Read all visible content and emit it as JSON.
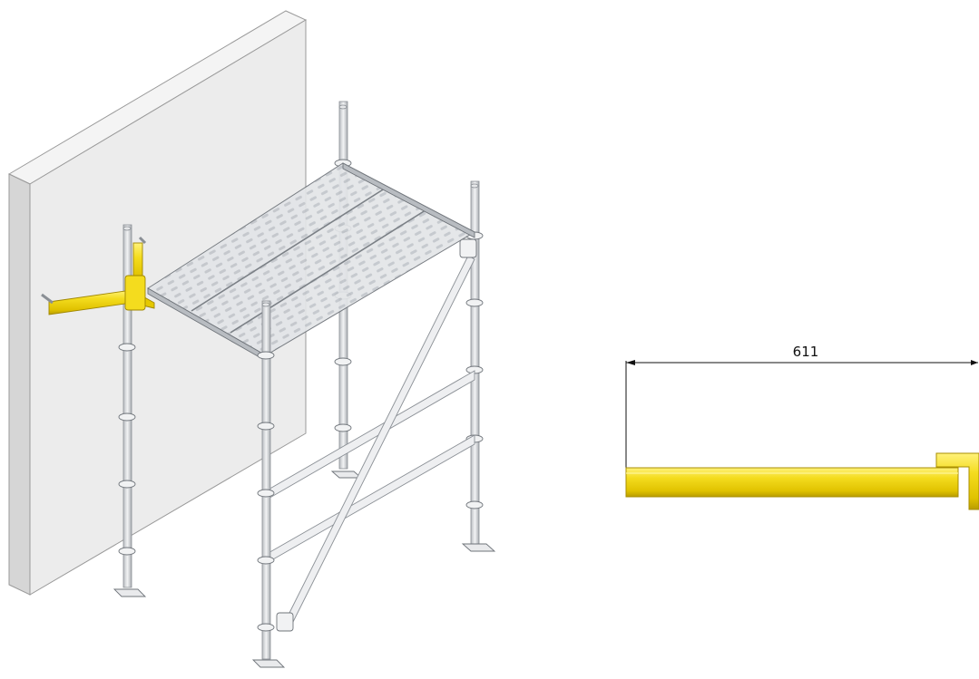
{
  "dimension": {
    "label": "611"
  },
  "colors": {
    "background": "#ffffff",
    "wall_front": "#ececec",
    "wall_side": "#d6d6d6",
    "wall_top": "#f4f4f4",
    "steel": "#c9ccd0",
    "steel_dark": "#8a8f95",
    "deck": "#d3d6da",
    "accent_yellow": "#f4dc1e",
    "accent_yellow_dark": "#c7ad00",
    "dimension_line": "#111111"
  },
  "figures": {
    "left": "scaffold-with-wall-bracket",
    "right": "bracket-side-view"
  }
}
